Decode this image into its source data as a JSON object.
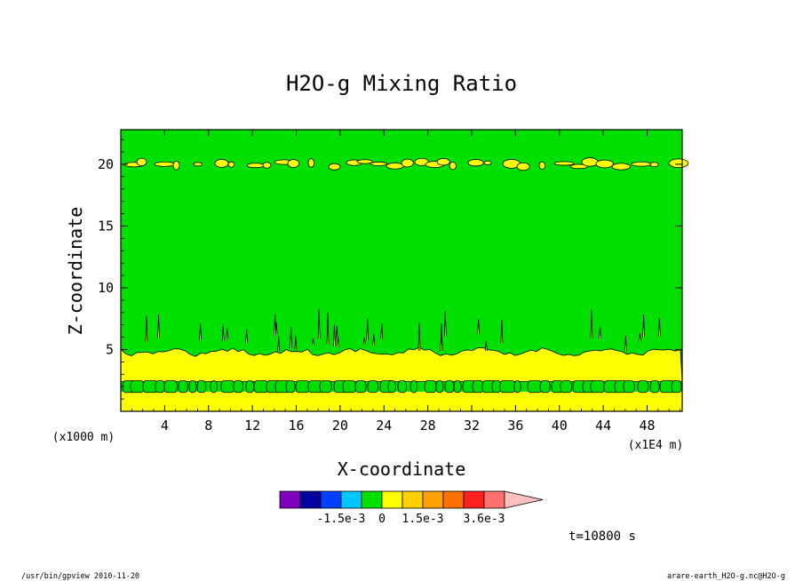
{
  "chart_data": {
    "type": "heatmap",
    "title": "H2O-g Mixing Ratio",
    "xlabel": "X-coordinate",
    "ylabel": "Z-coordinate",
    "x_unit": "(x1E4 m)",
    "y_unit": "(x1000 m)",
    "xlim": [
      0,
      51.2
    ],
    "ylim": [
      0,
      22.8
    ],
    "x_ticks": [
      "4",
      "8",
      "12",
      "16",
      "20",
      "24",
      "28",
      "32",
      "36",
      "40",
      "44",
      "48"
    ],
    "x_tick_values": [
      4,
      8,
      12,
      16,
      20,
      24,
      28,
      32,
      36,
      40,
      44,
      48
    ],
    "y_ticks": [
      "5",
      "10",
      "15",
      "20"
    ],
    "y_tick_values": [
      5,
      10,
      15,
      20
    ],
    "time_label": "t=10800 s",
    "bands": [
      {
        "name": "lower-yellow",
        "z_range": [
          0,
          1.6
        ],
        "color": "#ffff00"
      },
      {
        "name": "green-cells-layer",
        "z_range": [
          1.6,
          2.4
        ],
        "color": "#00e000"
      },
      {
        "name": "yellow-boundary-layer",
        "z_range": [
          2.4,
          4.8
        ],
        "color": "#ffff00"
      },
      {
        "name": "green-mid-atmosphere",
        "z_range": [
          4.8,
          22.8
        ],
        "color": "#00e000"
      }
    ],
    "upper_patch_level": 20,
    "colorbar": {
      "colors": [
        "#8000c0",
        "#0000a0",
        "#0040ff",
        "#00c8ff",
        "#00e000",
        "#ffff00",
        "#ffd000",
        "#ffa000",
        "#ff7000",
        "#ff2020",
        "#ff7070",
        "#ffc0c0"
      ],
      "labels": [
        "-1.5e-3",
        "0",
        "1.5e-3",
        "3.6e-3"
      ],
      "label_positions": [
        3,
        5,
        7,
        10
      ]
    }
  },
  "footer": {
    "left": "/usr/bin/gpview  2010-11-20",
    "right": "arare-earth_H2O-g.nc@H2O-g"
  }
}
